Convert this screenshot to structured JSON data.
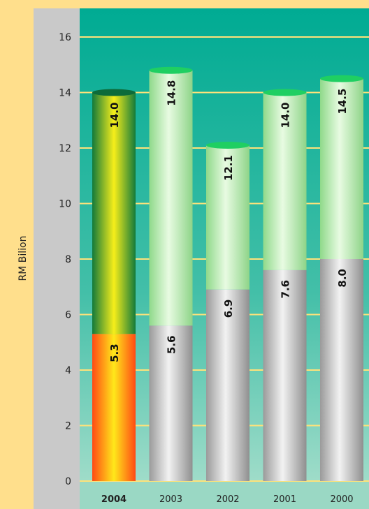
{
  "chart_data": {
    "type": "bar",
    "ylabel": "RM Bilion",
    "ylim": [
      0,
      16
    ],
    "yticks": [
      0,
      2,
      4,
      6,
      8,
      10,
      12,
      14,
      16
    ],
    "grid": true,
    "categories": [
      "2004",
      "2003",
      "2002",
      "2001",
      "2000"
    ],
    "highlight": "2004",
    "series": [
      {
        "values": [
          5.3,
          5.6,
          6.9,
          7.6,
          8.0
        ]
      },
      {
        "values": [
          14.0,
          14.8,
          12.1,
          14.0,
          14.5
        ]
      }
    ],
    "value_labels": {
      "lower": [
        "5.3",
        "5.6",
        "6.9",
        "7.6",
        "8.0"
      ],
      "upper": [
        "14.0",
        "14.8",
        "12.1",
        "14.0",
        "14.5"
      ]
    },
    "colors": {
      "plot_background": "#0aaf96",
      "gridline": "#ffe27a",
      "axis_panel": "#c9c9c9",
      "page_background": "#ffdf8c",
      "highlight_upper": "#1f8f3a",
      "highlight_lower": "#ff5a1a",
      "normal_upper": "#b6f0a8",
      "normal_lower": "#b8b8b8",
      "cap": "#1fcf62"
    }
  }
}
